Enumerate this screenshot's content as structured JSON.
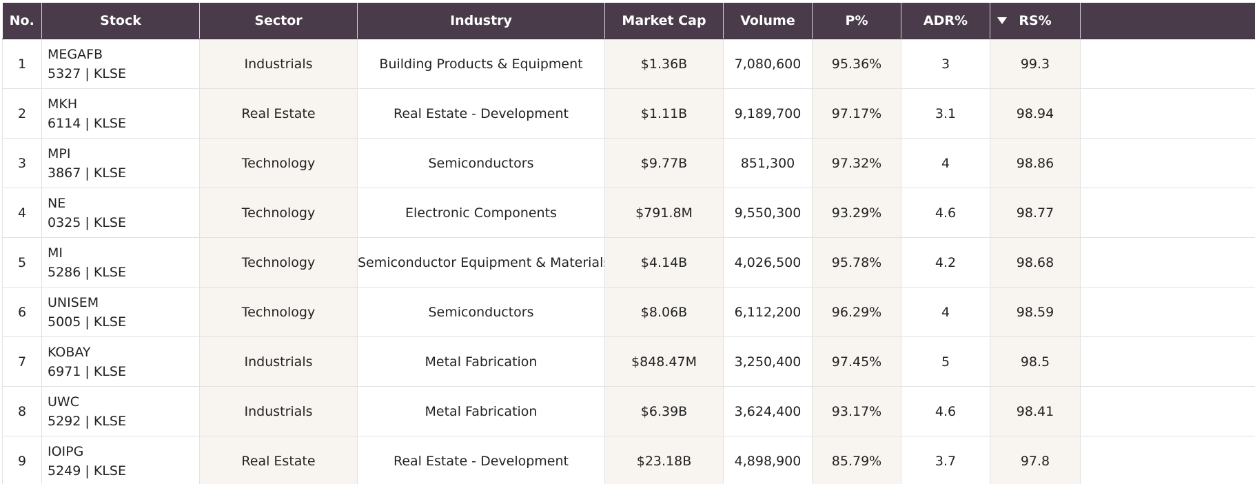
{
  "table": {
    "headers": {
      "no": "No.",
      "stock": "Stock",
      "sector": "Sector",
      "industry": "Industry",
      "market_cap": "Market Cap",
      "volume": "Volume",
      "p_pct": "P%",
      "adr_pct": "ADR%",
      "rs_pct": "RS%"
    },
    "sort": {
      "column": "RS%",
      "direction": "descending",
      "indicator_icon": "caret-down-icon"
    },
    "colors": {
      "header_bg": "#4a3b4a",
      "header_text": "#ffffff",
      "shaded_column_bg": "#f8f5f1"
    },
    "rows": [
      {
        "no": "1",
        "name": "MEGAFB",
        "code": "5327 | KLSE",
        "sector": "Industrials",
        "industry": "Building Products & Equipment",
        "market_cap": "$1.36B",
        "volume": "7,080,600",
        "p_pct": "95.36%",
        "adr_pct": "3",
        "rs_pct": "99.3"
      },
      {
        "no": "2",
        "name": "MKH",
        "code": "6114 | KLSE",
        "sector": "Real Estate",
        "industry": "Real Estate - Development",
        "market_cap": "$1.11B",
        "volume": "9,189,700",
        "p_pct": "97.17%",
        "adr_pct": "3.1",
        "rs_pct": "98.94"
      },
      {
        "no": "3",
        "name": "MPI",
        "code": "3867 | KLSE",
        "sector": "Technology",
        "industry": "Semiconductors",
        "market_cap": "$9.77B",
        "volume": "851,300",
        "p_pct": "97.32%",
        "adr_pct": "4",
        "rs_pct": "98.86"
      },
      {
        "no": "4",
        "name": "NE",
        "code": "0325 | KLSE",
        "sector": "Technology",
        "industry": "Electronic Components",
        "market_cap": "$791.8M",
        "volume": "9,550,300",
        "p_pct": "93.29%",
        "adr_pct": "4.6",
        "rs_pct": "98.77"
      },
      {
        "no": "5",
        "name": "MI",
        "code": "5286 | KLSE",
        "sector": "Technology",
        "industry": "Semiconductor Equipment & Materials",
        "market_cap": "$4.14B",
        "volume": "4,026,500",
        "p_pct": "95.78%",
        "adr_pct": "4.2",
        "rs_pct": "98.68"
      },
      {
        "no": "6",
        "name": "UNISEM",
        "code": "5005 | KLSE",
        "sector": "Technology",
        "industry": "Semiconductors",
        "market_cap": "$8.06B",
        "volume": "6,112,200",
        "p_pct": "96.29%",
        "adr_pct": "4",
        "rs_pct": "98.59"
      },
      {
        "no": "7",
        "name": "KOBAY",
        "code": "6971 | KLSE",
        "sector": "Industrials",
        "industry": "Metal Fabrication",
        "market_cap": "$848.47M",
        "volume": "3,250,400",
        "p_pct": "97.45%",
        "adr_pct": "5",
        "rs_pct": "98.5"
      },
      {
        "no": "8",
        "name": "UWC",
        "code": "5292 | KLSE",
        "sector": "Industrials",
        "industry": "Metal Fabrication",
        "market_cap": "$6.39B",
        "volume": "3,624,400",
        "p_pct": "93.17%",
        "adr_pct": "4.6",
        "rs_pct": "98.41"
      },
      {
        "no": "9",
        "name": "IOIPG",
        "code": "5249 | KLSE",
        "sector": "Real Estate",
        "industry": "Real Estate - Development",
        "market_cap": "$23.18B",
        "volume": "4,898,900",
        "p_pct": "85.79%",
        "adr_pct": "3.7",
        "rs_pct": "97.8"
      }
    ]
  }
}
